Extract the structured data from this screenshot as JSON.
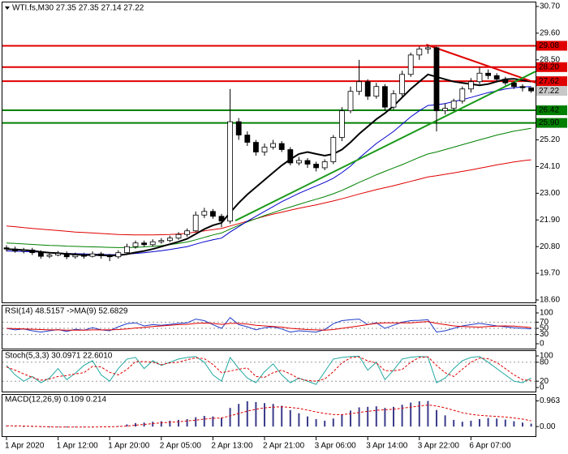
{
  "chart_data": [
    {
      "type": "candlestick",
      "title": "WTI.fs,M30  27.35 27.35 27.14 27.22",
      "categories": [
        "1 Apr 2020",
        null,
        null,
        null,
        null,
        null,
        "1 Apr 12:00",
        null,
        null,
        null,
        null,
        null,
        "1 Apr 20:00",
        null,
        null,
        null,
        null,
        null,
        "2 Apr 05:00",
        null,
        null,
        null,
        null,
        null,
        "2 Apr 13:00",
        null,
        null,
        null,
        null,
        null,
        "2 Apr 21:00",
        null,
        null,
        null,
        null,
        null,
        "3 Apr 06:00",
        null,
        null,
        null,
        null,
        null,
        "3 Apr 14:00",
        null,
        null,
        null,
        null,
        null,
        "3 Apr 22:00",
        null,
        null,
        null,
        null,
        null,
        "6 Apr 07:00",
        null,
        null,
        null,
        null,
        null,
        null,
        null
      ],
      "open": [
        20.75,
        20.7,
        20.62,
        20.66,
        20.55,
        20.4,
        20.45,
        20.52,
        20.38,
        20.45,
        20.4,
        20.5,
        20.42,
        20.38,
        20.55,
        20.8,
        20.95,
        20.88,
        21.0,
        21.05,
        21.15,
        21.3,
        21.45,
        22.1,
        22.25,
        22.05,
        21.85,
        25.95,
        25.4,
        25.1,
        24.7,
        24.9,
        25.05,
        24.8,
        24.25,
        24.35,
        24.2,
        24.05,
        24.3,
        25.3,
        26.4,
        27.2,
        27.6,
        27.0,
        27.4,
        26.55,
        27.1,
        27.9,
        28.7,
        28.95,
        29.0,
        26.4,
        26.5,
        26.8,
        27.3,
        27.6,
        27.95,
        27.85,
        27.7,
        27.55,
        27.4,
        27.35
      ],
      "high": [
        20.85,
        20.8,
        20.75,
        20.75,
        20.65,
        20.55,
        20.62,
        20.6,
        20.55,
        20.55,
        20.6,
        20.58,
        20.5,
        20.65,
        20.92,
        21.05,
        21.05,
        21.1,
        21.15,
        21.25,
        21.4,
        21.55,
        22.25,
        22.4,
        22.35,
        22.15,
        27.3,
        26.1,
        25.55,
        25.2,
        25.05,
        25.2,
        25.15,
        24.9,
        24.5,
        24.45,
        24.3,
        24.4,
        25.4,
        26.55,
        27.4,
        28.5,
        27.7,
        27.55,
        27.5,
        27.25,
        28.05,
        28.8,
        29.05,
        29.1,
        29.05,
        26.7,
        26.9,
        27.4,
        27.75,
        28.2,
        28.1,
        27.95,
        27.8,
        27.6,
        27.5,
        27.35
      ],
      "low": [
        20.6,
        20.55,
        20.52,
        20.45,
        20.3,
        20.32,
        20.4,
        20.28,
        20.3,
        20.3,
        20.35,
        20.3,
        20.2,
        20.3,
        20.48,
        20.72,
        20.8,
        20.8,
        20.92,
        20.98,
        21.08,
        21.2,
        21.4,
        21.98,
        21.95,
        21.6,
        21.75,
        25.2,
        24.95,
        24.55,
        24.55,
        24.8,
        24.7,
        24.15,
        24.15,
        24.05,
        23.9,
        23.95,
        24.2,
        25.15,
        26.3,
        27.05,
        26.85,
        26.9,
        26.4,
        26.45,
        26.95,
        27.8,
        28.5,
        28.75,
        25.55,
        26.25,
        26.4,
        26.7,
        27.15,
        27.5,
        27.7,
        27.6,
        27.45,
        27.3,
        27.2,
        27.14
      ],
      "close": [
        20.7,
        20.62,
        20.66,
        20.55,
        20.4,
        20.45,
        20.52,
        20.38,
        20.45,
        20.4,
        20.5,
        20.42,
        20.38,
        20.55,
        20.8,
        20.95,
        20.88,
        21.0,
        21.05,
        21.15,
        21.3,
        21.45,
        22.1,
        22.25,
        22.05,
        21.85,
        25.95,
        25.4,
        25.1,
        24.7,
        24.9,
        25.05,
        24.8,
        24.25,
        24.35,
        24.2,
        24.05,
        24.3,
        25.3,
        26.4,
        27.2,
        27.6,
        27.0,
        27.4,
        26.55,
        27.1,
        27.9,
        28.7,
        28.95,
        29.0,
        26.4,
        26.5,
        26.8,
        27.3,
        27.6,
        27.95,
        27.85,
        27.7,
        27.55,
        27.4,
        27.35,
        27.22
      ],
      "up_color": "#ffffff",
      "down_color": "#000000",
      "series": [
        {
          "color": "#e00000",
          "values": [
            21.65,
            21.62,
            21.58,
            21.55,
            21.52,
            21.49,
            21.46,
            21.43,
            21.4,
            21.38,
            21.36,
            21.34,
            21.32,
            21.3,
            21.29,
            21.28,
            21.28,
            21.28,
            21.29,
            21.3,
            21.32,
            21.35,
            21.4,
            21.45,
            21.5,
            21.55,
            21.65,
            21.75,
            21.85,
            21.95,
            22.05,
            22.14,
            22.22,
            22.3,
            22.38,
            22.45,
            22.52,
            22.6,
            22.68,
            22.77,
            22.87,
            22.97,
            23.06,
            23.15,
            23.23,
            23.31,
            23.4,
            23.49,
            23.58,
            23.67,
            23.72,
            23.78,
            23.84,
            23.9,
            23.96,
            24.03,
            24.1,
            24.17,
            24.23,
            24.29,
            24.34,
            24.38
          ]
        },
        {
          "color": "#008000",
          "values": [
            20.95,
            20.93,
            20.91,
            20.89,
            20.87,
            20.85,
            20.84,
            20.82,
            20.81,
            20.8,
            20.79,
            20.78,
            20.77,
            20.76,
            20.76,
            20.77,
            20.79,
            20.81,
            20.84,
            20.88,
            20.93,
            20.99,
            21.08,
            21.18,
            21.28,
            21.36,
            21.52,
            21.68,
            21.82,
            21.95,
            22.08,
            22.2,
            22.32,
            22.43,
            22.54,
            22.65,
            22.75,
            22.86,
            22.98,
            23.12,
            23.28,
            23.45,
            23.6,
            23.76,
            23.9,
            24.04,
            24.18,
            24.33,
            24.48,
            24.62,
            24.7,
            24.8,
            24.9,
            25.0,
            25.1,
            25.2,
            25.3,
            25.4,
            25.48,
            25.56,
            25.62,
            25.68
          ]
        },
        {
          "color": "#0000cc",
          "values": [
            20.62,
            20.61,
            20.6,
            20.59,
            20.57,
            20.55,
            20.54,
            20.52,
            20.51,
            20.5,
            20.49,
            20.48,
            20.47,
            20.47,
            20.49,
            20.52,
            20.55,
            20.59,
            20.63,
            20.68,
            20.74,
            20.8,
            20.9,
            21.0,
            21.08,
            21.15,
            21.4,
            21.62,
            21.85,
            22.05,
            22.25,
            22.45,
            22.65,
            22.82,
            23.0,
            23.15,
            23.3,
            23.45,
            23.62,
            23.85,
            24.12,
            24.45,
            24.75,
            25.05,
            25.3,
            25.55,
            25.85,
            26.15,
            26.4,
            26.62,
            26.65,
            26.7,
            26.78,
            26.86,
            26.95,
            27.05,
            27.15,
            27.22,
            27.3,
            27.35,
            27.38,
            27.4
          ]
        },
        {
          "color": "#000000",
          "values": [
            20.7,
            20.68,
            20.66,
            20.63,
            20.58,
            20.55,
            20.53,
            20.5,
            20.48,
            20.45,
            20.46,
            20.45,
            20.43,
            20.44,
            20.49,
            20.56,
            20.62,
            20.7,
            20.8,
            20.9,
            21.0,
            21.12,
            21.32,
            21.52,
            21.68,
            21.78,
            22.2,
            22.6,
            22.95,
            23.25,
            23.55,
            23.85,
            24.15,
            24.4,
            24.62,
            24.7,
            24.62,
            24.55,
            24.62,
            24.8,
            25.1,
            25.45,
            25.75,
            26.05,
            26.3,
            26.6,
            26.95,
            27.3,
            27.6,
            27.9,
            27.8,
            27.7,
            27.6,
            27.55,
            27.5,
            27.45,
            27.5,
            27.6,
            27.7,
            27.72,
            27.66,
            27.6
          ]
        }
      ],
      "levels": [
        {
          "value": 29.08,
          "label": "29.08",
          "color": "#e00000"
        },
        {
          "value": 28.2,
          "label": "28.20",
          "color": "#e00000"
        },
        {
          "value": 27.62,
          "label": "27.62",
          "color": "#e00000"
        },
        {
          "value": 26.42,
          "label": "26.42",
          "color": "#008000"
        },
        {
          "value": 25.9,
          "label": "25.90",
          "color": "#008000"
        }
      ],
      "price": {
        "value": 27.22,
        "label": "27.22",
        "color": "#c8c8c8"
      },
      "trendlines": [
        {
          "color": "#e00000",
          "x": [
            48.8,
            61.5
          ],
          "values": [
            29.13,
            27.56
          ]
        },
        {
          "color": "#1a9a1a",
          "x": [
            26.6,
            61.5
          ],
          "values": [
            21.87,
            28.02
          ]
        }
      ],
      "ylim": [
        18.6,
        30.7
      ],
      "yticks": [
        {
          "value": 30.7,
          "label": "30.70"
        },
        {
          "value": 29.6,
          "label": "29.60"
        },
        {
          "value": 28.5,
          "label": "28.50"
        },
        {
          "value": 25.2,
          "label": "25.20"
        },
        {
          "value": 24.1,
          "label": "24.10"
        },
        {
          "value": 23,
          "label": "23.00"
        },
        {
          "value": 21.9,
          "label": "21.90"
        },
        {
          "value": 20.8,
          "label": "20.80"
        },
        {
          "value": 19.7,
          "label": "19.70"
        },
        {
          "value": 18.6,
          "label": "18.60"
        }
      ]
    },
    {
      "type": "line",
      "title": "RSI(14) 48.5157 ->MA(9) 52.6829",
      "series": [
        {
          "color": "#1e3cc8",
          "values": [
            50,
            45,
            48,
            42,
            38,
            42,
            46,
            40,
            47,
            44,
            52,
            45,
            42,
            55,
            65,
            68,
            58,
            62,
            60,
            63,
            66,
            68,
            80,
            75,
            62,
            50,
            85,
            62,
            55,
            45,
            52,
            55,
            48,
            38,
            42,
            40,
            38,
            46,
            65,
            75,
            78,
            80,
            62,
            68,
            50,
            60,
            70,
            75,
            76,
            78,
            38,
            42,
            50,
            58,
            62,
            66,
            62,
            58,
            55,
            52,
            50,
            48.52
          ]
        },
        {
          "color": "#e00000",
          "values": [
            50,
            49,
            48,
            47,
            46,
            45,
            45,
            44,
            44,
            44,
            45,
            45,
            45,
            46,
            48,
            51,
            53,
            56,
            58,
            60,
            62,
            63,
            66,
            67,
            66,
            63,
            66,
            66,
            64,
            60,
            58,
            56,
            54,
            50,
            48,
            46,
            45,
            44,
            46,
            50,
            54,
            58,
            62,
            66,
            68,
            68,
            68,
            68,
            70,
            72,
            66,
            62,
            58,
            56,
            55,
            54,
            56,
            57,
            58,
            57,
            55,
            52.68
          ]
        }
      ],
      "ylim": [
        0,
        100
      ],
      "yticks": [
        100,
        70,
        50,
        30,
        0
      ]
    },
    {
      "type": "line",
      "title": "Stoch(5,3,3) 30.0971 22.6010",
      "series": [
        {
          "color": "#20a8a0",
          "values": [
            70,
            40,
            20,
            35,
            15,
            30,
            60,
            25,
            45,
            70,
            85,
            40,
            20,
            60,
            90,
            95,
            60,
            85,
            70,
            80,
            90,
            95,
            98,
            80,
            40,
            20,
            95,
            60,
            30,
            15,
            50,
            75,
            40,
            15,
            30,
            20,
            10,
            50,
            90,
            95,
            98,
            99,
            55,
            80,
            25,
            55,
            90,
            96,
            98,
            97,
            15,
            30,
            60,
            85,
            95,
            98,
            80,
            60,
            40,
            20,
            15,
            30.1
          ]
        },
        {
          "color": "#e00000",
          "dash": true,
          "values": [
            65,
            55,
            43,
            32,
            23,
            27,
            35,
            38,
            43,
            47,
            67,
            65,
            48,
            40,
            57,
            82,
            82,
            80,
            72,
            78,
            80,
            88,
            94,
            91,
            73,
            47,
            52,
            58,
            62,
            35,
            32,
            47,
            55,
            43,
            28,
            22,
            20,
            27,
            50,
            78,
            94,
            97,
            84,
            78,
            53,
            53,
            57,
            80,
            95,
            97,
            70,
            47,
            35,
            58,
            80,
            93,
            91,
            79,
            60,
            40,
            25,
            22.6
          ]
        }
      ],
      "ylim": [
        0,
        100
      ],
      "yticks": [
        100,
        80,
        20,
        0
      ]
    },
    {
      "type": "bar",
      "title": "MACD(12,26,9) 0.109 0.214",
      "color": "#3c3c8c",
      "values": [
        0.02,
        0.01,
        0.0,
        -0.01,
        -0.02,
        -0.03,
        -0.02,
        -0.03,
        -0.02,
        -0.02,
        0.0,
        0.0,
        -0.01,
        0.02,
        0.08,
        0.13,
        0.15,
        0.18,
        0.2,
        0.22,
        0.25,
        0.28,
        0.35,
        0.4,
        0.38,
        0.33,
        0.7,
        0.85,
        0.95,
        0.92,
        0.88,
        0.85,
        0.78,
        0.62,
        0.5,
        0.38,
        0.28,
        0.22,
        0.3,
        0.45,
        0.6,
        0.72,
        0.74,
        0.76,
        0.7,
        0.74,
        0.82,
        0.9,
        0.95,
        0.96,
        0.62,
        0.42,
        0.25,
        0.18,
        0.22,
        0.28,
        0.32,
        0.3,
        0.26,
        0.2,
        0.15,
        0.109
      ],
      "series": [
        {
          "color": "#e00000",
          "dash": true,
          "values": [
            0.03,
            0.03,
            0.02,
            0.01,
            0.0,
            -0.01,
            -0.02,
            -0.02,
            -0.02,
            -0.02,
            -0.02,
            -0.01,
            -0.01,
            0.0,
            0.02,
            0.05,
            0.08,
            0.11,
            0.14,
            0.16,
            0.18,
            0.21,
            0.24,
            0.28,
            0.31,
            0.32,
            0.4,
            0.49,
            0.58,
            0.65,
            0.7,
            0.73,
            0.74,
            0.72,
            0.68,
            0.62,
            0.55,
            0.49,
            0.45,
            0.45,
            0.48,
            0.53,
            0.57,
            0.61,
            0.63,
            0.65,
            0.69,
            0.73,
            0.77,
            0.81,
            0.77,
            0.7,
            0.61,
            0.52,
            0.46,
            0.42,
            0.4,
            0.38,
            0.36,
            0.32,
            0.28,
            0.214
          ]
        }
      ],
      "ylim": [
        -0.3,
        1.1
      ],
      "yticks": [
        {
          "value": 0.963,
          "label": "0.963"
        },
        {
          "value": 0,
          "label": "0.00"
        }
      ]
    }
  ]
}
